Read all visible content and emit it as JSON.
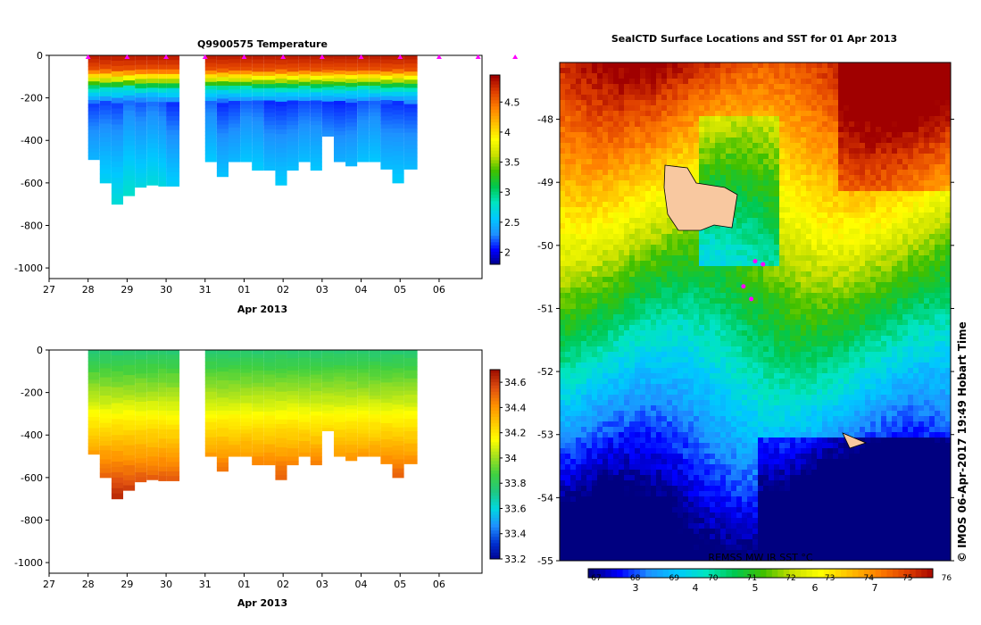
{
  "chart_data": [
    {
      "type": "heatmap",
      "title": "Q9900575  Temperature",
      "xlabel": "Apr 2013",
      "x_ticks": [
        "27",
        "28",
        "29",
        "30",
        "31",
        "01",
        "02",
        "03",
        "04",
        "05",
        "06"
      ],
      "y_ticks": [
        0,
        -200,
        -400,
        -600,
        -800,
        -1000
      ],
      "ylim": [
        -1050,
        0
      ],
      "colorbar_ticks": [
        4.5,
        4,
        3.5,
        3,
        2.5,
        2
      ],
      "colorbar_range": [
        1.8,
        4.95
      ],
      "profiles_x": [
        28.0,
        28.3,
        28.6,
        28.9,
        29.2,
        29.5,
        29.8,
        30.0,
        31.0,
        31.3,
        31.6,
        31.9,
        32.2,
        32.5,
        32.8,
        33.1,
        33.4,
        33.7,
        34.0,
        34.3,
        34.6,
        34.9,
        35.2,
        35.5,
        35.8,
        36.1
      ],
      "profiles_max_depth": [
        -490,
        -600,
        -700,
        -660,
        -620,
        -610,
        -615,
        -615,
        -500,
        -570,
        -500,
        -500,
        -540,
        -540,
        -610,
        -540,
        -500,
        -540,
        -380,
        -500,
        -520,
        -500,
        -500,
        -535,
        -600,
        -535
      ],
      "surface_marks_x": [
        28.0,
        29.0,
        30.0,
        31.0,
        32.0,
        33.0,
        34.0,
        35.0,
        36.0,
        37.0,
        38.0,
        38.95
      ]
    },
    {
      "type": "heatmap",
      "title": "",
      "xlabel": "Apr 2013",
      "x_ticks": [
        "27",
        "28",
        "29",
        "30",
        "31",
        "01",
        "02",
        "03",
        "04",
        "05",
        "06"
      ],
      "y_ticks": [
        0,
        -200,
        -400,
        -600,
        -800,
        -1000
      ],
      "ylim": [
        -1050,
        0
      ],
      "colorbar_ticks": [
        34.6,
        34.4,
        34.2,
        34,
        33.8,
        33.6,
        33.4,
        33.2
      ],
      "colorbar_range": [
        33.2,
        34.7
      ]
    },
    {
      "type": "heatmap",
      "title": "SealCTD Surface Locations and SST for 01 Apr 2013",
      "y_ticks": [
        -48,
        -49,
        -50,
        -51,
        -52,
        -53,
        -54,
        -55
      ],
      "ylim": [
        -55,
        -47.1
      ],
      "colorbar_label": "REMSS MW IR SST °C",
      "colorbar_top_ticks": [
        "67",
        "68",
        "69",
        "70",
        "71",
        "72",
        "73",
        "74",
        "75",
        "76"
      ],
      "colorbar_bottom_ticks": [
        "3",
        "4",
        "5",
        "6",
        "7"
      ],
      "side_text": "© IMOS 06-Apr-2017 19:49 Hobart Time",
      "seal_positions": [
        [
          -50.25,
          0.5
        ],
        [
          -50.3,
          0.52
        ],
        [
          -50.65,
          0.47
        ],
        [
          -50.85,
          0.49
        ]
      ]
    }
  ],
  "colors": {
    "temp_scale": [
      "#000080",
      "#0000ff",
      "#1e90ff",
      "#00c8ff",
      "#00e5c0",
      "#00c850",
      "#40c000",
      "#c8e000",
      "#ffff00",
      "#ffc000",
      "#ff8000",
      "#e04000",
      "#a00000"
    ],
    "sal_scale": [
      "#000090",
      "#0030d0",
      "#1e90ff",
      "#00d8e0",
      "#20c880",
      "#40d040",
      "#a0e020",
      "#ffff00",
      "#ffc800",
      "#ff9000",
      "#e05010",
      "#a01000"
    ],
    "island": "#f8c8a0",
    "seal_marker": "#ff00ff"
  }
}
